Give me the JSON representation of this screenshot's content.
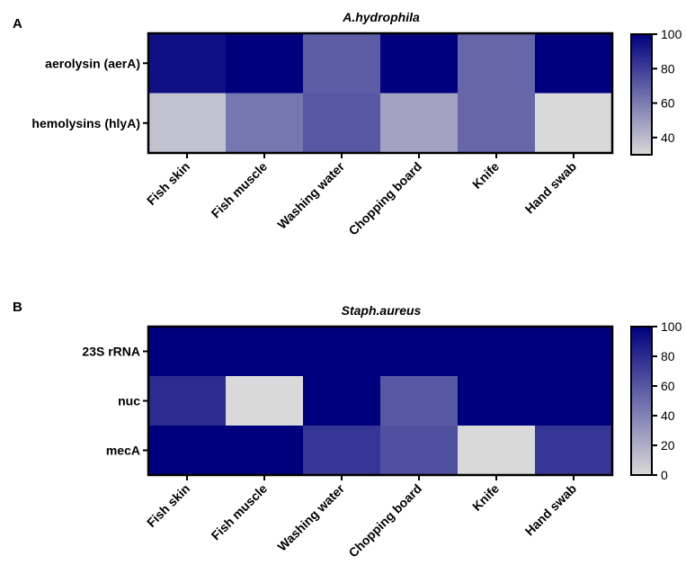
{
  "figure": {
    "panel_a_letter": "A",
    "panel_b_letter": "B"
  },
  "chart_data": [
    {
      "type": "heatmap",
      "title": "A.hydrophila",
      "rows": [
        "aerolysin (aerA)",
        "hemolysins (hlyA)"
      ],
      "columns": [
        "Fish skin",
        "Fish muscle",
        "Washing water",
        "Chopping board",
        "Knife",
        "Hand swab"
      ],
      "values": [
        [
          95,
          100,
          70,
          100,
          67,
          100
        ],
        [
          37,
          62,
          72,
          48,
          67,
          30
        ]
      ],
      "colorbar": {
        "min": 30,
        "max": 100,
        "ticks": [
          40,
          60,
          80,
          100
        ],
        "low_color": "#d9d9d9",
        "high_color": "#00007f"
      }
    },
    {
      "type": "heatmap",
      "title": "Staph.aureus",
      "rows": [
        "23S rRNA",
        "nuc",
        "mecA"
      ],
      "columns": [
        "Fish skin",
        "Fish muscle",
        "Washing water",
        "Chopping board",
        "Knife",
        "Hand swab"
      ],
      "values": [
        [
          100,
          100,
          100,
          100,
          100,
          100
        ],
        [
          80,
          0,
          100,
          60,
          100,
          100
        ],
        [
          100,
          100,
          75,
          63,
          0,
          75
        ]
      ],
      "colorbar": {
        "min": 0,
        "max": 100,
        "ticks": [
          0,
          20,
          40,
          60,
          80,
          100
        ],
        "low_color": "#d9d9d9",
        "high_color": "#00007f"
      }
    }
  ]
}
